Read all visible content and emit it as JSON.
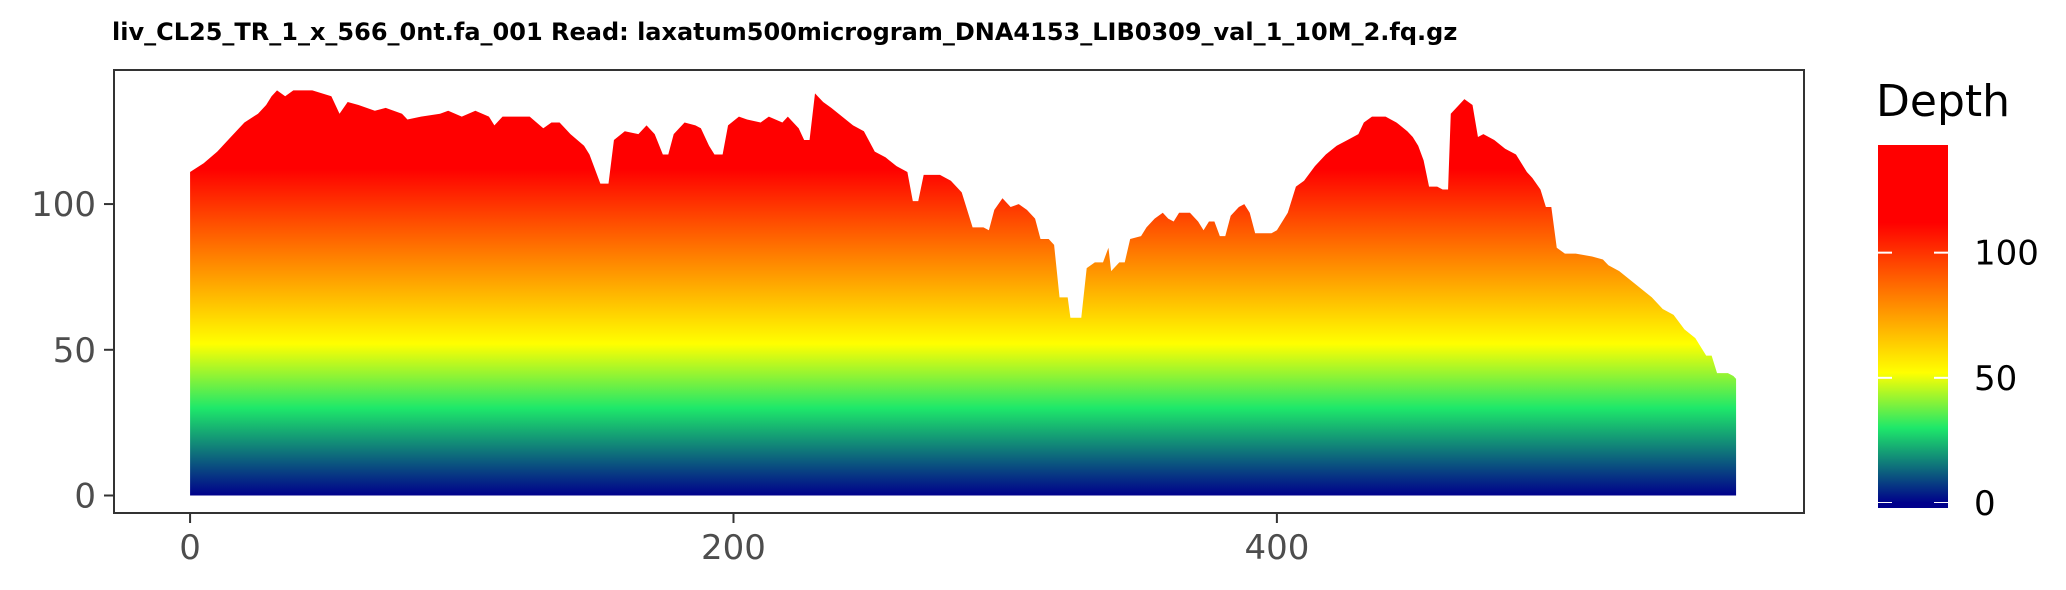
{
  "chart_data": {
    "type": "area",
    "title": "liv_CL25_TR_1_x_566_0nt.fa_001   Read: laxatum500microgram_DNA4153_LIB0309_val_1_10M_2.fq.gz",
    "xlabel": "",
    "ylabel": "",
    "xlim": [
      -28,
      594
    ],
    "ylim": [
      -6,
      146
    ],
    "x_ticks": [
      0,
      200,
      400
    ],
    "y_ticks": [
      0,
      50,
      100
    ],
    "grid": false,
    "legend": {
      "title": "Depth",
      "position": "right",
      "ticks": [
        0,
        50,
        100
      ],
      "range": [
        -2,
        143
      ]
    },
    "color_scale": [
      {
        "value": 0,
        "color": "#00008B"
      },
      {
        "value": 30,
        "color": "#1EE86A"
      },
      {
        "value": 52,
        "color": "#FFFF00"
      },
      {
        "value": 112,
        "color": "#FF0000"
      },
      {
        "value": 143,
        "color": "#FF0000"
      }
    ],
    "series": [
      {
        "points": [
          [
            0,
            111
          ],
          [
            5,
            114
          ],
          [
            10,
            118
          ],
          [
            15,
            123
          ],
          [
            20,
            128
          ],
          [
            25,
            131
          ],
          [
            28,
            134
          ],
          [
            30,
            137
          ],
          [
            32,
            139
          ],
          [
            35,
            137
          ],
          [
            38,
            139
          ],
          [
            45,
            139
          ],
          [
            52,
            137
          ],
          [
            55,
            131
          ],
          [
            58,
            135
          ],
          [
            62,
            134
          ],
          [
            68,
            132
          ],
          [
            72,
            133
          ],
          [
            78,
            131
          ],
          [
            80,
            129
          ],
          [
            85,
            130
          ],
          [
            92,
            131
          ],
          [
            95,
            132
          ],
          [
            100,
            130
          ],
          [
            105,
            132
          ],
          [
            110,
            130
          ],
          [
            112,
            127
          ],
          [
            115,
            130
          ],
          [
            125,
            130
          ],
          [
            130,
            126
          ],
          [
            133,
            128
          ],
          [
            136,
            128
          ],
          [
            140,
            124
          ],
          [
            145,
            120
          ],
          [
            147,
            117
          ],
          [
            151,
            107
          ],
          [
            154,
            107
          ],
          [
            156,
            122
          ],
          [
            160,
            125
          ],
          [
            165,
            124
          ],
          [
            168,
            127
          ],
          [
            171,
            124
          ],
          [
            174,
            117
          ],
          [
            176,
            117
          ],
          [
            178,
            124
          ],
          [
            182,
            128
          ],
          [
            186,
            127
          ],
          [
            188,
            126
          ],
          [
            191,
            120
          ],
          [
            193,
            117
          ],
          [
            196,
            117
          ],
          [
            198,
            127
          ],
          [
            202,
            130
          ],
          [
            205,
            129
          ],
          [
            210,
            128
          ],
          [
            213,
            130
          ],
          [
            218,
            128
          ],
          [
            220,
            130
          ],
          [
            224,
            126
          ],
          [
            226,
            122
          ],
          [
            228,
            122
          ],
          [
            230,
            138
          ],
          [
            233,
            135
          ],
          [
            236,
            133
          ],
          [
            240,
            130
          ],
          [
            244,
            127
          ],
          [
            248,
            125
          ],
          [
            252,
            118
          ],
          [
            256,
            116
          ],
          [
            260,
            113
          ],
          [
            264,
            111
          ],
          [
            266,
            101
          ],
          [
            268,
            101
          ],
          [
            270,
            110
          ],
          [
            276,
            110
          ],
          [
            280,
            108
          ],
          [
            284,
            104
          ],
          [
            288,
            92
          ],
          [
            292,
            92
          ],
          [
            294,
            91
          ],
          [
            296,
            98
          ],
          [
            299,
            102
          ],
          [
            302,
            99
          ],
          [
            305,
            100
          ],
          [
            308,
            98
          ],
          [
            311,
            95
          ],
          [
            313,
            88
          ],
          [
            316,
            88
          ],
          [
            318,
            86
          ],
          [
            320,
            68
          ],
          [
            323,
            68
          ],
          [
            324,
            61
          ],
          [
            328,
            61
          ],
          [
            330,
            78
          ],
          [
            333,
            80
          ],
          [
            336,
            80
          ],
          [
            338,
            85
          ],
          [
            339,
            77
          ],
          [
            342,
            80
          ],
          [
            344,
            80
          ],
          [
            346,
            88
          ],
          [
            350,
            89
          ],
          [
            352,
            92
          ],
          [
            355,
            95
          ],
          [
            358,
            97
          ],
          [
            360,
            95
          ],
          [
            362,
            94
          ],
          [
            364,
            97
          ],
          [
            368,
            97
          ],
          [
            371,
            94
          ],
          [
            373,
            91
          ],
          [
            375,
            94
          ],
          [
            377,
            94
          ],
          [
            379,
            89
          ],
          [
            381,
            89
          ],
          [
            383,
            96
          ],
          [
            386,
            99
          ],
          [
            388,
            100
          ],
          [
            390,
            97
          ],
          [
            392,
            90
          ],
          [
            398,
            90
          ],
          [
            400,
            91
          ],
          [
            404,
            97
          ],
          [
            407,
            106
          ],
          [
            410,
            108
          ],
          [
            414,
            113
          ],
          [
            418,
            117
          ],
          [
            422,
            120
          ],
          [
            426,
            122
          ],
          [
            430,
            124
          ],
          [
            432,
            128
          ],
          [
            435,
            130
          ],
          [
            440,
            130
          ],
          [
            444,
            128
          ],
          [
            448,
            125
          ],
          [
            450,
            123
          ],
          [
            452,
            120
          ],
          [
            454,
            115
          ],
          [
            456,
            106
          ],
          [
            459,
            106
          ],
          [
            461,
            105
          ],
          [
            463,
            105
          ],
          [
            464,
            131
          ],
          [
            467,
            134
          ],
          [
            469,
            136
          ],
          [
            472,
            134
          ],
          [
            474,
            123
          ],
          [
            476,
            124
          ],
          [
            480,
            122
          ],
          [
            484,
            119
          ],
          [
            488,
            117
          ],
          [
            490,
            114
          ],
          [
            492,
            111
          ],
          [
            494,
            109
          ],
          [
            497,
            105
          ],
          [
            499,
            99
          ],
          [
            501,
            99
          ],
          [
            503,
            85
          ],
          [
            506,
            83
          ],
          [
            510,
            83
          ],
          [
            516,
            82
          ],
          [
            520,
            81
          ],
          [
            522,
            79
          ],
          [
            526,
            77
          ],
          [
            530,
            74
          ],
          [
            534,
            71
          ],
          [
            538,
            68
          ],
          [
            542,
            64
          ],
          [
            546,
            62
          ],
          [
            550,
            57
          ],
          [
            554,
            54
          ],
          [
            558,
            48
          ],
          [
            560,
            48
          ],
          [
            562,
            42
          ],
          [
            566,
            42
          ],
          [
            568,
            41
          ],
          [
            569,
            40
          ]
        ]
      }
    ]
  }
}
